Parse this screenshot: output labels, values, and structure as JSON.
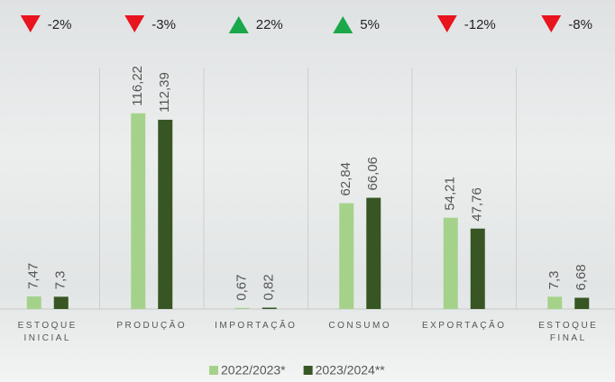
{
  "chart_data": {
    "type": "bar",
    "categories": [
      "ESTOQUE INICIAL",
      "PRODUÇÃO",
      "IMPORTAÇÃO",
      "CONSUMO",
      "EXPORTAÇÃO",
      "ESTOQUE FINAL"
    ],
    "series": [
      {
        "name": "2022/2023*",
        "color": "#a5d28a",
        "values": [
          7.47,
          116.22,
          0.67,
          62.84,
          54.21,
          7.3
        ],
        "value_labels": [
          "7,47",
          "116,22",
          "0,67",
          "62,84",
          "54,21",
          "7,3"
        ]
      },
      {
        "name": "2023/2024**",
        "color": "#375623",
        "values": [
          7.3,
          112.39,
          0.82,
          66.06,
          47.76,
          6.68
        ],
        "value_labels": [
          "7,3",
          "112,39",
          "0,82",
          "66,06",
          "47,76",
          "6,68"
        ]
      }
    ],
    "changes": [
      -2,
      -3,
      22,
      5,
      -12,
      -8
    ],
    "change_labels": [
      "-2%",
      "-3%",
      "22%",
      "5%",
      "-12%",
      "-8%"
    ],
    "up_color": "#1aa84a",
    "down_color": "#e8141e",
    "ylim": [
      0,
      130
    ],
    "legend": "bottom"
  }
}
